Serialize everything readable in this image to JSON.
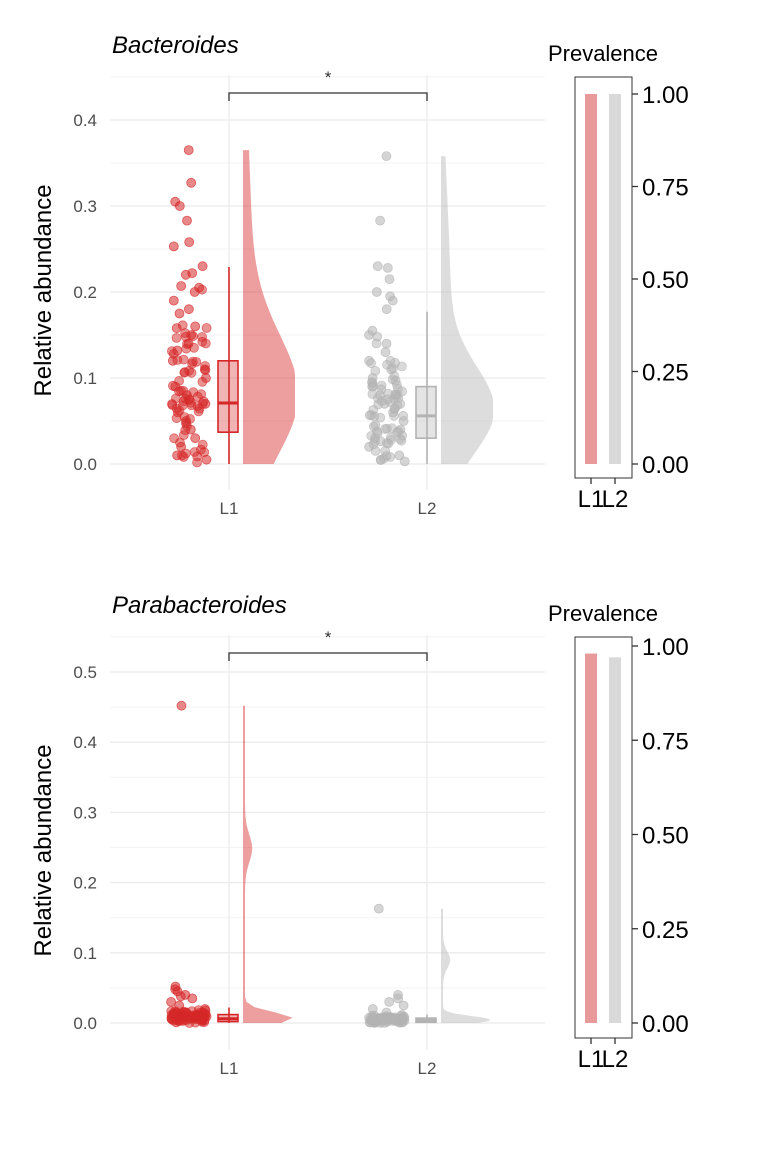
{
  "chart_data": [
    {
      "type": "raincloud",
      "title": "Bacteroides",
      "ylabel": "Relative abundance",
      "categories": [
        "L1",
        "L2"
      ],
      "ylim": [
        -0.02,
        0.45
      ],
      "yticks": [
        "0.0",
        "0.1",
        "0.2",
        "0.3",
        "0.4"
      ],
      "significance": "*",
      "colors": {
        "L1": "#d62728",
        "L2": "#b3b3b3"
      },
      "box": [
        {
          "group": "L1",
          "whisker_low": 0.0,
          "q1": 0.037,
          "median": 0.071,
          "q3": 0.12,
          "whisker_high": 0.229
        },
        {
          "group": "L2",
          "whisker_low": 0.0,
          "q1": 0.03,
          "median": 0.056,
          "q3": 0.09,
          "whisker_high": 0.177
        }
      ],
      "outliers": {
        "L1": [
          0.365,
          0.327,
          0.305,
          0.3,
          0.283,
          0.258,
          0.253,
          0.23,
          0.222,
          0.22,
          0.207,
          0.205,
          0.2,
          0.19,
          0.18,
          0.175,
          0.16,
          0.158,
          0.15,
          0.14,
          0.132,
          0.12,
          0.11,
          0.1,
          0.09,
          0.08,
          0.07,
          0.06,
          0.05,
          0.04,
          0.03,
          0.02,
          0.01,
          0.005
        ],
        "L2": [
          0.358,
          0.283,
          0.23,
          0.228,
          0.215,
          0.2,
          0.195,
          0.19,
          0.18,
          0.155,
          0.15,
          0.14,
          0.13,
          0.12,
          0.11,
          0.1,
          0.09,
          0.08,
          0.07,
          0.06,
          0.05,
          0.04,
          0.03,
          0.02,
          0.01,
          0.003
        ]
      },
      "prevalence": {
        "title": "Prevalence",
        "categories": [
          "L1",
          "L2"
        ],
        "values": [
          1.0,
          1.0
        ],
        "yticks": [
          "0.00",
          "0.25",
          "0.50",
          "0.75",
          "1.00"
        ]
      }
    },
    {
      "type": "raincloud",
      "title": "Parabacteroides",
      "ylabel": "Relative abundance",
      "categories": [
        "L1",
        "L2"
      ],
      "ylim": [
        -0.02,
        0.55
      ],
      "yticks": [
        "0.0",
        "0.1",
        "0.2",
        "0.3",
        "0.4",
        "0.5"
      ],
      "significance": "*",
      "colors": {
        "L1": "#d62728",
        "L2": "#b3b3b3"
      },
      "box": [
        {
          "group": "L1",
          "whisker_low": 0.0,
          "q1": 0.002,
          "median": 0.006,
          "q3": 0.012,
          "whisker_high": 0.022
        },
        {
          "group": "L2",
          "whisker_low": 0.0,
          "q1": 0.001,
          "median": 0.004,
          "q3": 0.007,
          "whisker_high": 0.012
        }
      ],
      "outliers": {
        "L1": [
          0.452,
          0.052,
          0.048,
          0.045,
          0.04,
          0.038,
          0.035,
          0.03,
          0.025,
          0.02,
          0.015,
          0.01,
          0.008,
          0.005,
          0.003,
          0.001
        ],
        "L2": [
          0.163,
          0.04,
          0.035,
          0.03,
          0.025,
          0.02,
          0.015,
          0.01,
          0.007,
          0.004,
          0.001
        ]
      },
      "prevalence": {
        "title": "Prevalence",
        "categories": [
          "L1",
          "L2"
        ],
        "values": [
          0.98,
          0.97
        ],
        "yticks": [
          "0.00",
          "0.25",
          "0.50",
          "0.75",
          "1.00"
        ]
      }
    }
  ]
}
